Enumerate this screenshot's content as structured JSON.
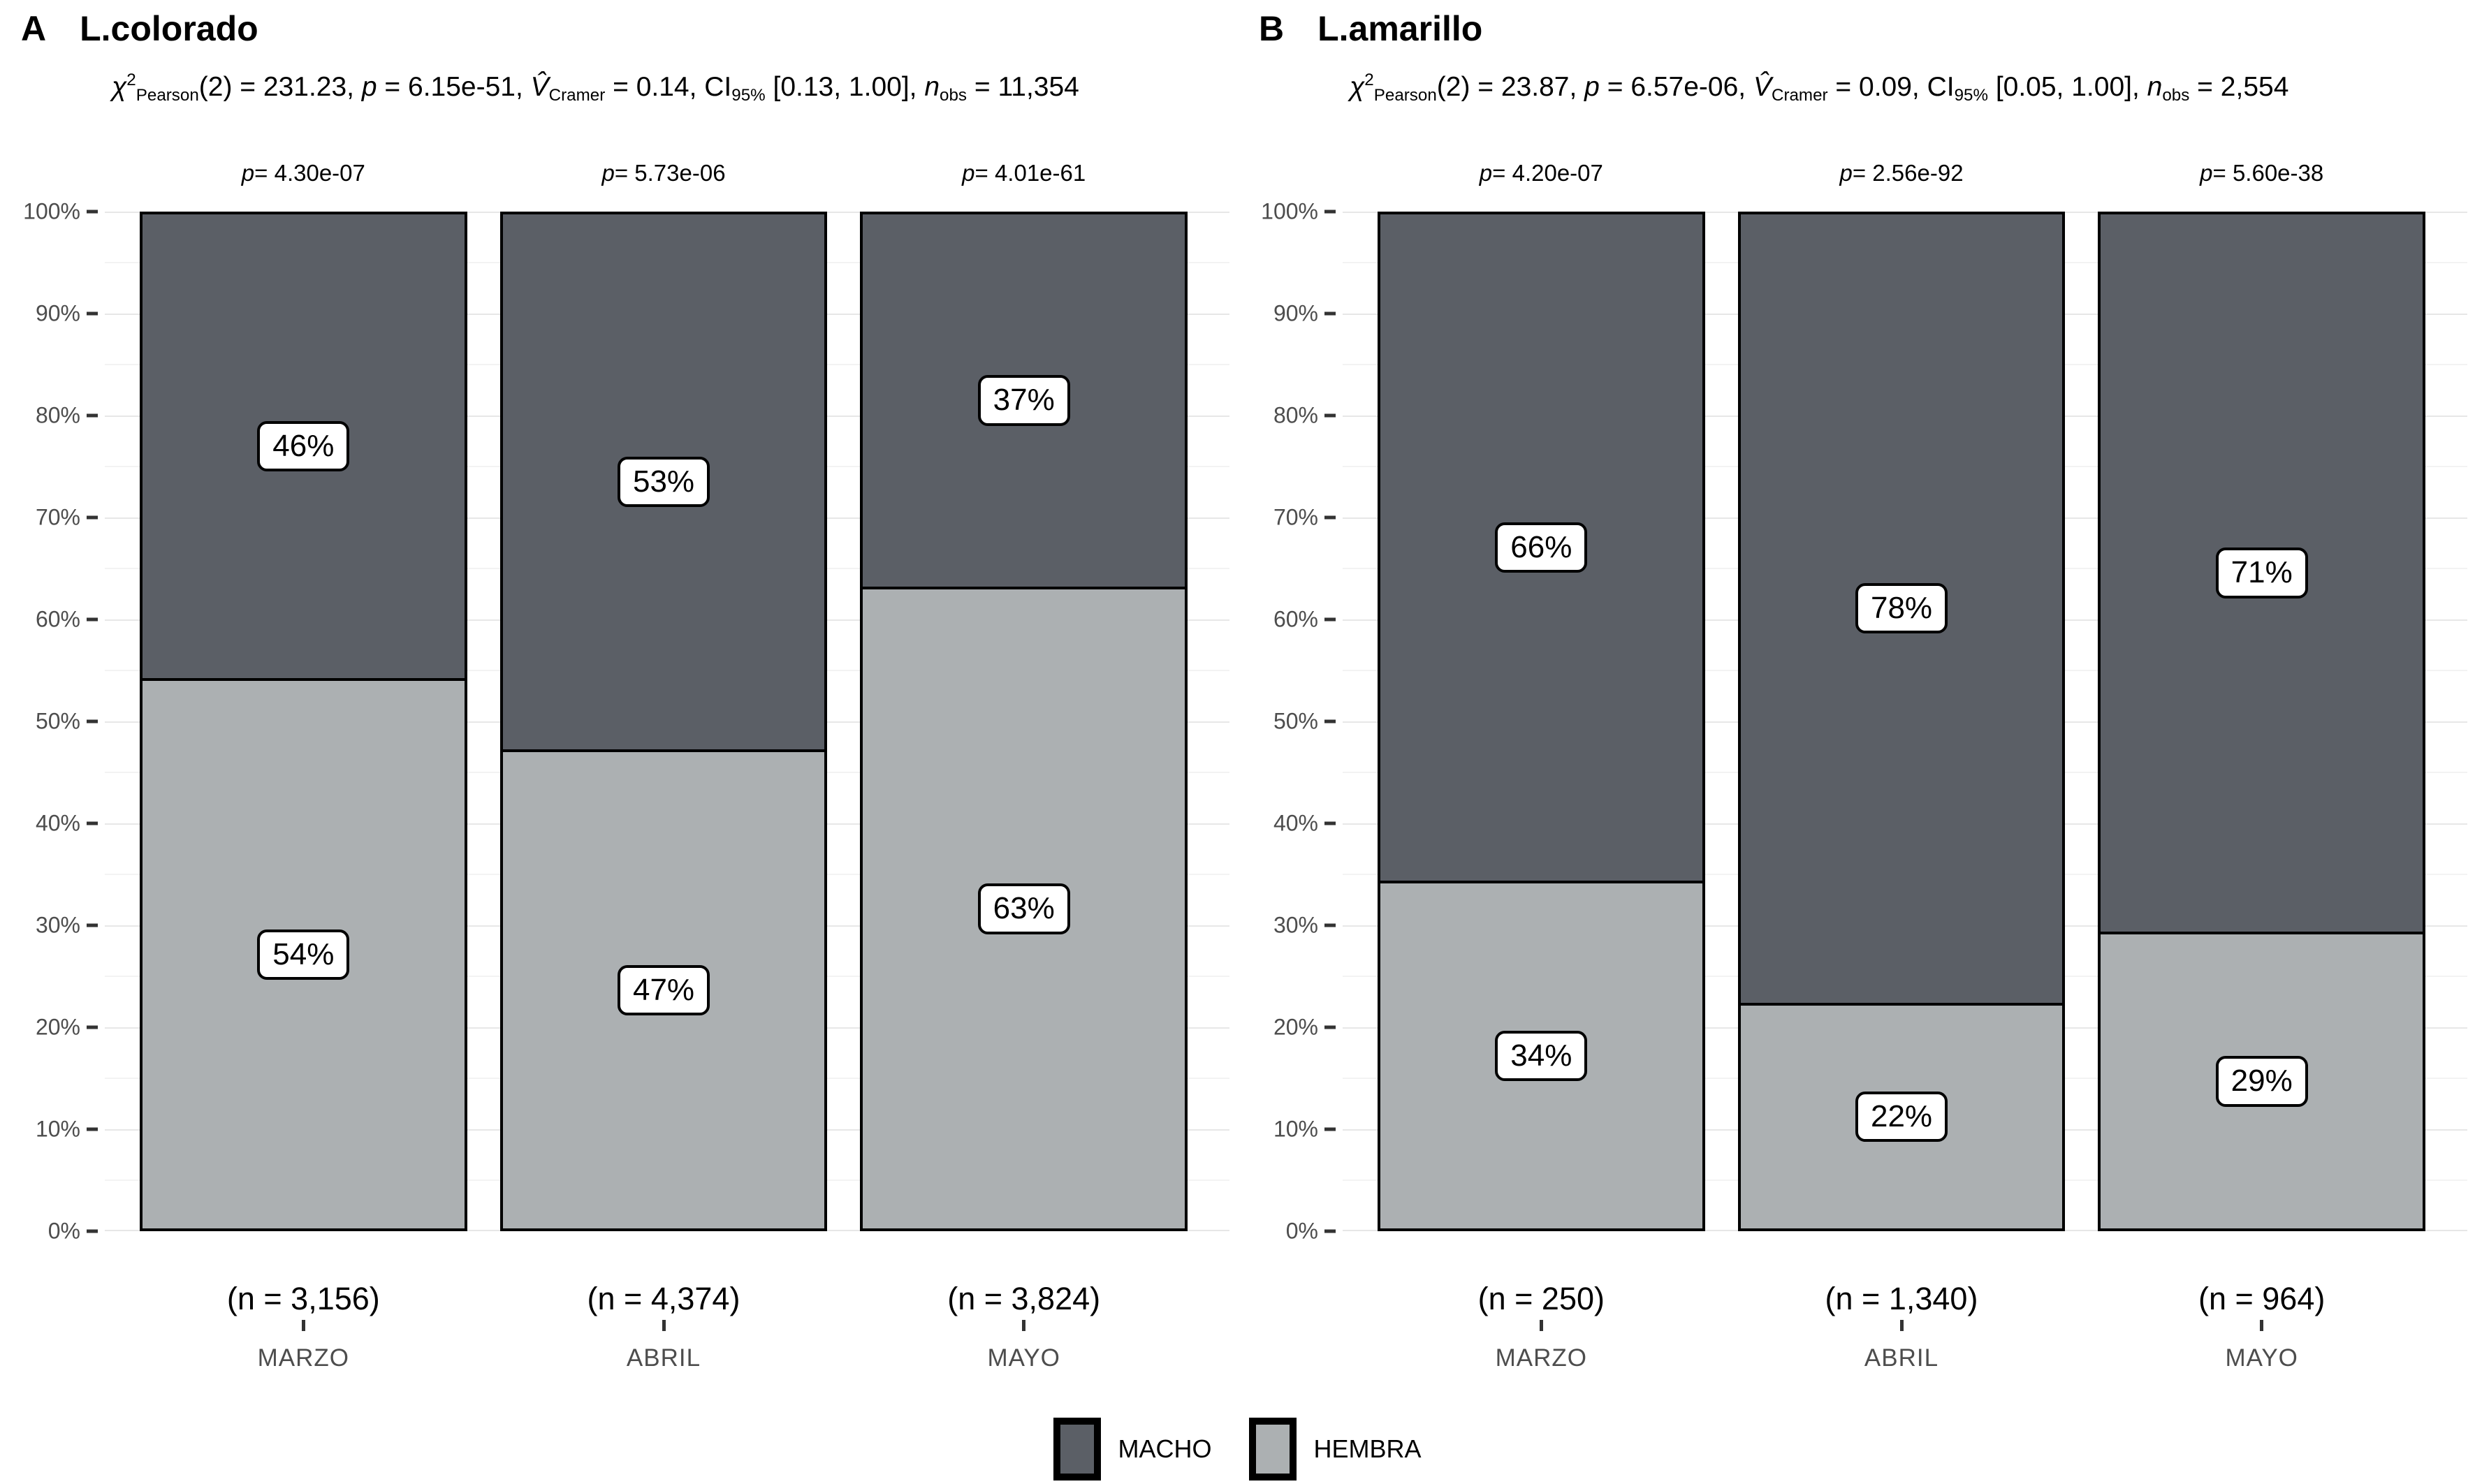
{
  "colors": {
    "macho": "#5B5F66",
    "hembra": "#ACB0B2",
    "label_box_bg": "#FFFFFF",
    "label_box_border": "#000000",
    "grid_major": "#E7E7E7",
    "grid_minor": "#F3F3F3",
    "axis_text": "#4D4D4D",
    "bar_border": "#000000"
  },
  "y_axis": {
    "ticks": [
      "100%",
      "90%",
      "80%",
      "70%",
      "60%",
      "50%",
      "40%",
      "30%",
      "20%",
      "10%",
      "0%"
    ]
  },
  "legend": {
    "items": [
      {
        "label": "MACHO",
        "color_key": "macho"
      },
      {
        "label": "HEMBRA",
        "color_key": "hembra"
      }
    ]
  },
  "chart_data": [
    {
      "type": "bar",
      "stacked": true,
      "units": "percent",
      "panel_tag": "A",
      "title": "L.colorado",
      "subtitle_segments": [
        {
          "t": "χ",
          "s": "i"
        },
        {
          "t": "2",
          "s": "sup"
        },
        {
          "t": "Pearson",
          "s": "sub"
        },
        {
          "t": "(2) = 231.23, "
        },
        {
          "t": "p",
          "s": "i"
        },
        {
          "t": " = 6.15e-51, "
        },
        {
          "t": "V̂",
          "s": "i"
        },
        {
          "t": "Cramer",
          "s": "sub"
        },
        {
          "t": " = 0.14, CI"
        },
        {
          "t": "95%",
          "s": "sub"
        },
        {
          "t": " [0.13, 1.00], "
        },
        {
          "t": "n",
          "s": "i"
        },
        {
          "t": "obs",
          "s": "sub"
        },
        {
          "t": " = 11,354"
        }
      ],
      "categories": [
        "MARZO",
        "ABRIL",
        "MAYO"
      ],
      "series": [
        {
          "name": "MACHO",
          "values": [
            46,
            53,
            37
          ],
          "labels": [
            "46%",
            "53%",
            "37%"
          ]
        },
        {
          "name": "HEMBRA",
          "values": [
            54,
            47,
            63
          ],
          "labels": [
            "54%",
            "47%",
            "63%"
          ]
        }
      ],
      "p_annotations": [
        [
          {
            "t": "p",
            "s": "i"
          },
          {
            "t": " = 4.30e-07"
          }
        ],
        [
          {
            "t": "p",
            "s": "i"
          },
          {
            "t": " = 5.73e-06"
          }
        ],
        [
          {
            "t": "p",
            "s": "i"
          },
          {
            "t": " = 4.01e-61"
          }
        ]
      ],
      "n_labels": [
        "(n = 3,156)",
        "(n = 4,374)",
        "(n = 3,824)"
      ],
      "xlabel": "",
      "ylabel": "",
      "ylim": [
        0,
        100
      ],
      "grid": true,
      "legend_position": "bottom"
    },
    {
      "type": "bar",
      "stacked": true,
      "units": "percent",
      "panel_tag": "B",
      "title": "L.amarillo",
      "subtitle_segments": [
        {
          "t": "χ",
          "s": "i"
        },
        {
          "t": "2",
          "s": "sup"
        },
        {
          "t": "Pearson",
          "s": "sub"
        },
        {
          "t": "(2) = 23.87, "
        },
        {
          "t": "p",
          "s": "i"
        },
        {
          "t": " = 6.57e-06, "
        },
        {
          "t": "V̂",
          "s": "i"
        },
        {
          "t": "Cramer",
          "s": "sub"
        },
        {
          "t": " = 0.09, CI"
        },
        {
          "t": "95%",
          "s": "sub"
        },
        {
          "t": " [0.05, 1.00], "
        },
        {
          "t": "n",
          "s": "i"
        },
        {
          "t": "obs",
          "s": "sub"
        },
        {
          "t": " = 2,554"
        }
      ],
      "categories": [
        "MARZO",
        "ABRIL",
        "MAYO"
      ],
      "series": [
        {
          "name": "MACHO",
          "values": [
            66,
            78,
            71
          ],
          "labels": [
            "66%",
            "78%",
            "71%"
          ]
        },
        {
          "name": "HEMBRA",
          "values": [
            34,
            22,
            29
          ],
          "labels": [
            "34%",
            "22%",
            "29%"
          ]
        }
      ],
      "p_annotations": [
        [
          {
            "t": "p",
            "s": "i"
          },
          {
            "t": " = 4.20e-07"
          }
        ],
        [
          {
            "t": "p",
            "s": "i"
          },
          {
            "t": " = 2.56e-92"
          }
        ],
        [
          {
            "t": "p",
            "s": "i"
          },
          {
            "t": " = 5.60e-38"
          }
        ]
      ],
      "n_labels": [
        "(n = 250)",
        "(n = 1,340)",
        "(n = 964)"
      ],
      "xlabel": "",
      "ylabel": "",
      "ylim": [
        0,
        100
      ],
      "grid": true,
      "legend_position": "bottom"
    }
  ]
}
